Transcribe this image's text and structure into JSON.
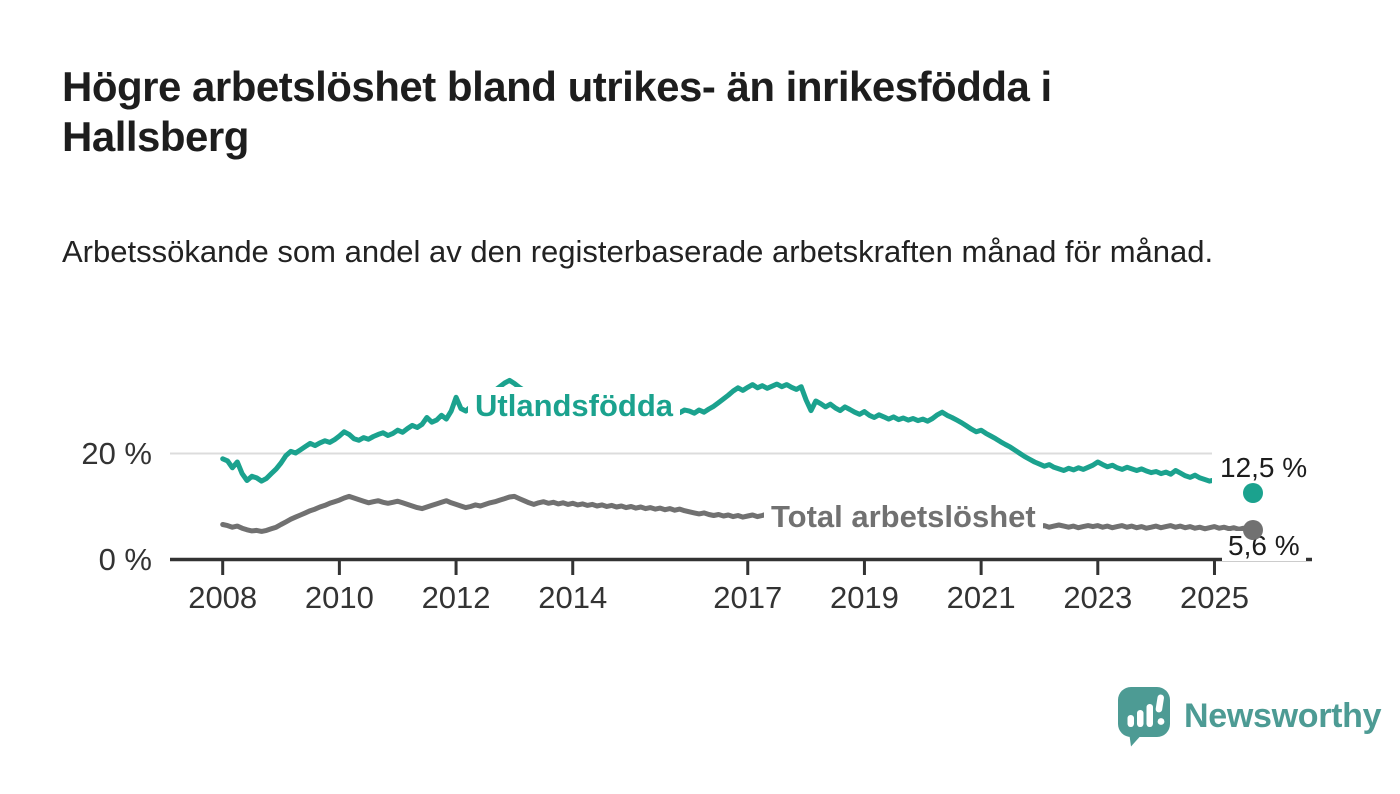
{
  "title": "Högre arbetslöshet bland utrikes- än inrikesfödda i Hallsberg",
  "subtitle": "Arbetssökande som andel av den registerbaserade arbetskraften månad för månad.",
  "branding": {
    "logo_text": "Newsworthy",
    "logo_icon": "speech-bubble-with-bar-chart-and-exclamation"
  },
  "colors": {
    "foreign_born_line": "#1ba28e",
    "total_line": "#717171",
    "axis": "#333333",
    "gridline": "#dcdcdc",
    "text": "#1d1d1d",
    "brand_teal": "#4d9b94"
  },
  "chart_data": {
    "type": "line",
    "title": "Högre arbetslöshet bland utrikes- än inrikesfödda i Hallsberg",
    "subtitle": "Arbetssökande som andel av den registerbaserade arbetskraften månad för månad.",
    "x_unit": "year-month",
    "x_start_year": 2008,
    "x_step_years": 0.0833333,
    "x_axis_ticks": [
      2008,
      2010,
      2012,
      2014,
      2017,
      2019,
      2021,
      2023,
      2025
    ],
    "y_axis_ticks": [
      {
        "value": 20,
        "label": "20 %"
      },
      {
        "value": 0,
        "label": "0 %"
      }
    ],
    "ylim": [
      0,
      37
    ],
    "grid": "single-horizontal-gridline-at-20",
    "legend_position": "inline-labels-on-lines",
    "series": [
      {
        "name": "Utlandsfödda",
        "color": "#1ba28e",
        "end_label": "12,5 %",
        "end_value": 12.5,
        "values": [
          19.0,
          18.6,
          17.3,
          18.4,
          16.2,
          14.9,
          15.7,
          15.4,
          14.8,
          15.3,
          16.2,
          17.1,
          18.2,
          19.6,
          20.4,
          20.1,
          20.7,
          21.3,
          21.9,
          21.5,
          22.0,
          22.4,
          22.1,
          22.6,
          23.3,
          24.1,
          23.6,
          22.8,
          22.5,
          23.0,
          22.7,
          23.2,
          23.6,
          23.9,
          23.4,
          23.8,
          24.4,
          24.0,
          24.7,
          25.3,
          24.9,
          25.5,
          26.8,
          25.9,
          26.3,
          27.2,
          26.5,
          28.0,
          30.6,
          28.5,
          28.0,
          28.8,
          29.4,
          30.0,
          30.8,
          31.3,
          31.9,
          32.6,
          33.3,
          33.8,
          33.2,
          32.5,
          31.9,
          31.4,
          30.9,
          30.4,
          30.0,
          29.6,
          29.2,
          28.9,
          28.6,
          28.4,
          28.6,
          28.3,
          28.7,
          28.4,
          28.1,
          28.5,
          28.2,
          27.9,
          28.3,
          28.0,
          28.4,
          28.1,
          28.3,
          28.0,
          28.4,
          28.1,
          27.8,
          28.2,
          27.9,
          28.6,
          27.1,
          28.3,
          27.7,
          28.2,
          28.0,
          27.6,
          28.2,
          27.8,
          28.4,
          28.9,
          29.6,
          30.3,
          31.0,
          31.8,
          32.4,
          31.9,
          32.5,
          33.0,
          32.4,
          32.8,
          32.3,
          32.7,
          33.1,
          32.6,
          33.0,
          32.5,
          32.1,
          32.6,
          30.1,
          28.1,
          29.9,
          29.4,
          28.8,
          29.3,
          28.6,
          28.1,
          28.8,
          28.3,
          27.8,
          27.4,
          27.9,
          27.2,
          26.8,
          27.3,
          26.9,
          26.5,
          26.9,
          26.4,
          26.7,
          26.3,
          26.6,
          26.2,
          26.5,
          26.1,
          26.6,
          27.3,
          27.8,
          27.2,
          26.8,
          26.3,
          25.8,
          25.2,
          24.6,
          24.1,
          24.4,
          23.8,
          23.3,
          22.8,
          22.2,
          21.7,
          21.2,
          20.6,
          20.0,
          19.4,
          18.9,
          18.4,
          18.0,
          17.6,
          17.9,
          17.4,
          17.1,
          16.8,
          17.2,
          16.9,
          17.3,
          17.0,
          17.4,
          17.8,
          18.4,
          17.9,
          17.5,
          17.8,
          17.3,
          17.0,
          17.4,
          17.1,
          16.8,
          17.1,
          16.7,
          16.4,
          16.6,
          16.2,
          16.5,
          16.1,
          16.8,
          16.3,
          15.8,
          15.5,
          15.9,
          15.4,
          15.1,
          14.8,
          15.0,
          14.6,
          14.3,
          14.6,
          14.1,
          13.8,
          13.4,
          12.9,
          12.5
        ]
      },
      {
        "name": "Total arbetslöshet",
        "color": "#717171",
        "end_label": "5,6 %",
        "end_value": 5.6,
        "values": [
          6.6,
          6.4,
          6.1,
          6.3,
          5.9,
          5.6,
          5.4,
          5.5,
          5.3,
          5.5,
          5.8,
          6.1,
          6.6,
          7.1,
          7.6,
          8.0,
          8.4,
          8.8,
          9.2,
          9.5,
          9.9,
          10.2,
          10.6,
          10.9,
          11.2,
          11.6,
          11.9,
          11.6,
          11.3,
          11.0,
          10.7,
          10.9,
          11.1,
          10.8,
          10.6,
          10.8,
          11.0,
          10.7,
          10.4,
          10.1,
          9.8,
          9.6,
          9.9,
          10.2,
          10.5,
          10.8,
          11.1,
          10.7,
          10.4,
          10.1,
          9.8,
          10.0,
          10.3,
          10.1,
          10.4,
          10.7,
          10.9,
          11.2,
          11.5,
          11.8,
          11.9,
          11.5,
          11.1,
          10.7,
          10.4,
          10.7,
          10.9,
          10.6,
          10.8,
          10.5,
          10.7,
          10.4,
          10.6,
          10.3,
          10.5,
          10.2,
          10.4,
          10.1,
          10.3,
          10.0,
          10.2,
          9.9,
          10.1,
          9.8,
          10.0,
          9.7,
          9.9,
          9.6,
          9.8,
          9.5,
          9.7,
          9.4,
          9.6,
          9.3,
          9.5,
          9.2,
          9.0,
          8.8,
          8.6,
          8.8,
          8.5,
          8.3,
          8.5,
          8.2,
          8.4,
          8.1,
          8.3,
          8.0,
          8.2,
          8.4,
          8.1,
          8.3,
          8.6,
          8.4,
          8.6,
          8.3,
          8.5,
          8.2,
          8.4,
          8.1,
          8.3,
          8.0,
          8.2,
          7.9,
          8.1,
          7.8,
          8.0,
          7.7,
          7.9,
          7.6,
          7.8,
          7.5,
          7.7,
          7.4,
          7.6,
          7.3,
          7.5,
          7.2,
          7.4,
          7.1,
          7.3,
          7.5,
          7.2,
          7.4,
          7.6,
          7.8,
          8.1,
          8.4,
          8.2,
          8.0,
          7.8,
          7.6,
          7.4,
          7.2,
          7.0,
          6.8,
          7.0,
          6.8,
          6.6,
          6.8,
          6.5,
          6.3,
          6.5,
          6.2,
          6.4,
          6.1,
          6.3,
          6.0,
          6.2,
          6.4,
          6.1,
          6.3,
          6.5,
          6.3,
          6.1,
          6.3,
          6.0,
          6.2,
          6.4,
          6.2,
          6.4,
          6.1,
          6.3,
          6.0,
          6.2,
          6.4,
          6.1,
          6.3,
          6.0,
          6.2,
          5.9,
          6.1,
          6.3,
          6.0,
          6.2,
          6.4,
          6.1,
          6.3,
          6.0,
          6.2,
          5.9,
          6.1,
          5.8,
          6.0,
          6.2,
          5.9,
          6.1,
          5.8,
          6.0,
          5.7,
          5.9,
          5.7,
          5.6
        ]
      }
    ]
  }
}
